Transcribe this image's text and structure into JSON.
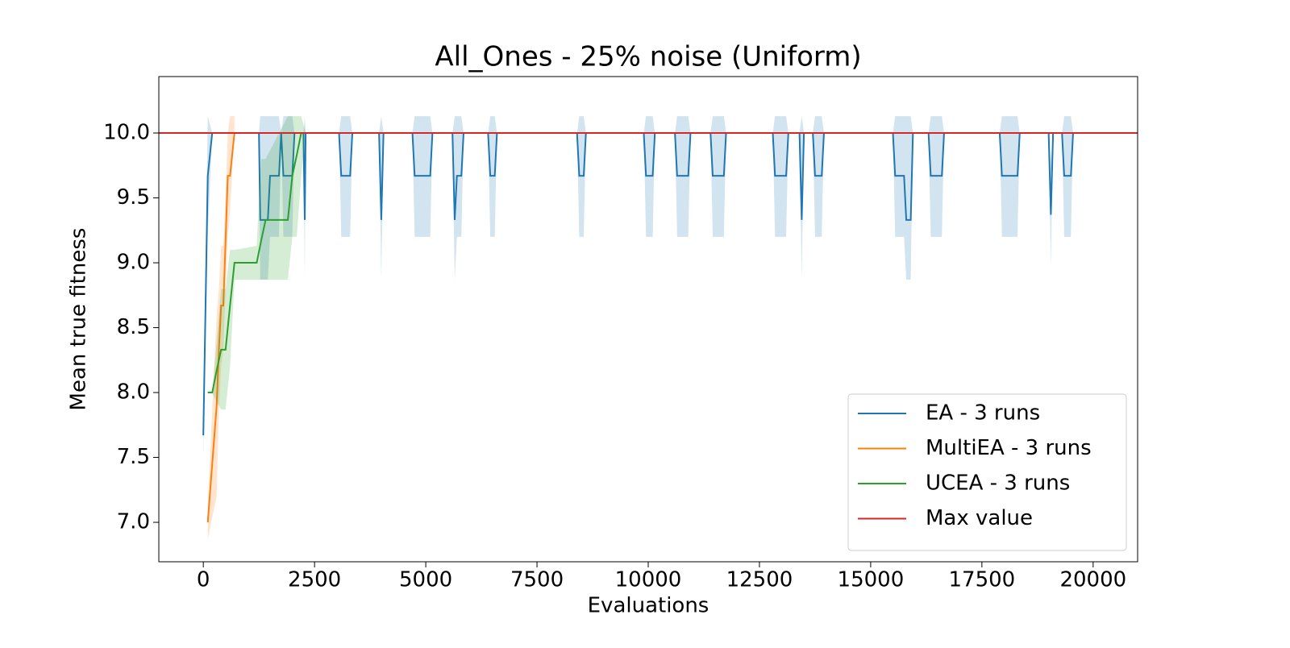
{
  "chart_data": {
    "type": "line",
    "title": "All_Ones - 25% noise (Uniform)",
    "x_label": "Evaluations",
    "y_label": "Mean true fitness",
    "xlim": [
      -1000,
      21000
    ],
    "ylim": [
      6.696,
      10.435
    ],
    "xticks": [
      0,
      2500,
      5000,
      7500,
      10000,
      12500,
      15000,
      17500,
      20000
    ],
    "yticks": [
      {
        "value": 7,
        "label": "7.0"
      },
      7.5,
      {
        "value": 8,
        "label": "8.0"
      },
      8.5,
      {
        "value": 9,
        "label": "9.0"
      },
      9.5,
      {
        "value": 10,
        "label": "10.0"
      }
    ],
    "legend": "lower right",
    "series": [
      {
        "name": "EA - 3 runs",
        "color": "#1f77b4",
        "x": [
          0,
          100,
          200,
          1250,
          1280,
          1450,
          1500,
          1700,
          1750,
          1800,
          2000,
          2050,
          2250,
          2280,
          2300,
          3050,
          3100,
          3300,
          3350,
          3950,
          4000,
          4050,
          4700,
          4750,
          5100,
          5150,
          5600,
          5650,
          5700,
          5800,
          5850,
          6400,
          6450,
          6550,
          6600,
          8400,
          8450,
          8550,
          8600,
          9900,
          9950,
          10100,
          10150,
          10600,
          10650,
          10900,
          10950,
          11400,
          11450,
          11700,
          11750,
          12800,
          12850,
          13100,
          13150,
          13400,
          13450,
          13500,
          13700,
          13750,
          13900,
          13950,
          15500,
          15550,
          15750,
          15800,
          15900,
          15950,
          16300,
          16350,
          16600,
          16650,
          17900,
          17950,
          18300,
          18350,
          19000,
          19050,
          19100,
          19300,
          19350,
          19500,
          19550,
          20000
        ],
        "values": [
          7.67,
          9.67,
          10,
          10,
          9.33,
          9.33,
          9.67,
          9.67,
          10,
          9.67,
          9.67,
          10,
          10,
          9.33,
          10,
          10,
          9.67,
          9.67,
          10,
          10,
          9.33,
          10,
          10,
          9.67,
          9.67,
          10,
          10,
          9.33,
          9.67,
          9.67,
          10,
          10,
          9.67,
          9.67,
          10,
          10,
          9.67,
          9.67,
          10,
          10,
          9.67,
          9.67,
          10,
          10,
          9.67,
          9.67,
          10,
          10,
          9.67,
          9.67,
          10,
          10,
          9.67,
          9.67,
          10,
          10,
          9.33,
          10,
          10,
          9.67,
          9.67,
          10,
          10,
          9.67,
          9.67,
          9.33,
          9.33,
          10,
          10,
          9.67,
          9.67,
          10,
          10,
          9.67,
          9.67,
          10,
          10,
          9.37,
          10,
          10,
          9.67,
          9.67,
          10,
          10
        ],
        "lower": [
          7.5,
          9.2,
          10,
          10,
          8.87,
          8.87,
          9.2,
          9.2,
          10,
          9.2,
          9.2,
          10,
          10,
          8.87,
          10,
          10,
          9.2,
          9.2,
          10,
          10,
          8.87,
          10,
          10,
          9.2,
          9.2,
          10,
          10,
          8.87,
          9.2,
          9.2,
          10,
          10,
          9.2,
          9.2,
          10,
          10,
          9.2,
          9.2,
          10,
          10,
          9.2,
          9.2,
          10,
          10,
          9.2,
          9.2,
          10,
          10,
          9.2,
          9.2,
          10,
          10,
          9.2,
          9.2,
          10,
          10,
          8.87,
          10,
          10,
          9.2,
          9.2,
          10,
          10,
          9.2,
          9.2,
          8.87,
          8.87,
          10,
          10,
          9.2,
          9.2,
          10,
          10,
          9.2,
          9.2,
          10,
          10,
          8.97,
          10,
          10,
          9.2,
          9.2,
          10,
          10
        ],
        "upper": [
          7.8,
          10.13,
          10,
          10,
          10.13,
          10.13,
          10.13,
          10.13,
          10,
          10.13,
          10.13,
          10,
          10,
          10.13,
          10,
          10,
          10.13,
          10.13,
          10,
          10,
          10.13,
          10,
          10,
          10.13,
          10.13,
          10,
          10,
          10.13,
          10.13,
          10.13,
          10,
          10,
          10.13,
          10.13,
          10,
          10,
          10.13,
          10.13,
          10,
          10,
          10.13,
          10.13,
          10,
          10,
          10.13,
          10.13,
          10,
          10,
          10.13,
          10.13,
          10,
          10,
          10.13,
          10.13,
          10,
          10,
          10.13,
          10,
          10,
          10.13,
          10.13,
          10,
          10,
          10.13,
          10.13,
          10.13,
          10.13,
          10,
          10,
          10.13,
          10.13,
          10,
          10,
          10.13,
          10.13,
          10,
          10,
          9.77,
          10,
          10,
          10.13,
          10.13,
          10,
          10
        ]
      },
      {
        "name": "MultiEA - 3 runs",
        "color": "#ff7f0e",
        "x": [
          100,
          300,
          350,
          400,
          450,
          500,
          550,
          600,
          700
        ],
        "values": [
          7.0,
          7.9,
          8.33,
          8.67,
          8.67,
          9.17,
          9.67,
          9.67,
          10.0
        ],
        "lower": [
          6.87,
          7.2,
          7.87,
          8.2,
          8.33,
          8.8,
          9.2,
          9.4,
          10
        ],
        "upper": [
          7.13,
          8.6,
          8.8,
          9.13,
          9.13,
          9.53,
          10.0,
          10.13,
          10.13
        ]
      },
      {
        "name": "UCEA - 3 runs",
        "color": "#2ca02c",
        "x": [
          100,
          200,
          300,
          400,
          500,
          600,
          700,
          1200,
          1300,
          1400,
          1900,
          2000,
          2100,
          2200,
          2300
        ],
        "values": [
          8.0,
          8.0,
          8.17,
          8.33,
          8.33,
          8.67,
          9.0,
          9.0,
          9.17,
          9.33,
          9.33,
          9.67,
          9.83,
          10,
          10
        ],
        "lower": [
          8.0,
          8.0,
          7.93,
          7.87,
          7.87,
          8.2,
          8.87,
          8.87,
          8.87,
          8.87,
          8.87,
          9.2,
          9.2,
          9.67,
          10
        ],
        "upper": [
          8.0,
          8.0,
          8.4,
          8.8,
          8.8,
          9.1,
          9.1,
          9.13,
          9.8,
          9.8,
          10.13,
          10.13,
          10.13,
          10.13,
          10
        ]
      },
      {
        "name": "Max value",
        "color": "#d62728",
        "y_value": 10
      }
    ]
  }
}
